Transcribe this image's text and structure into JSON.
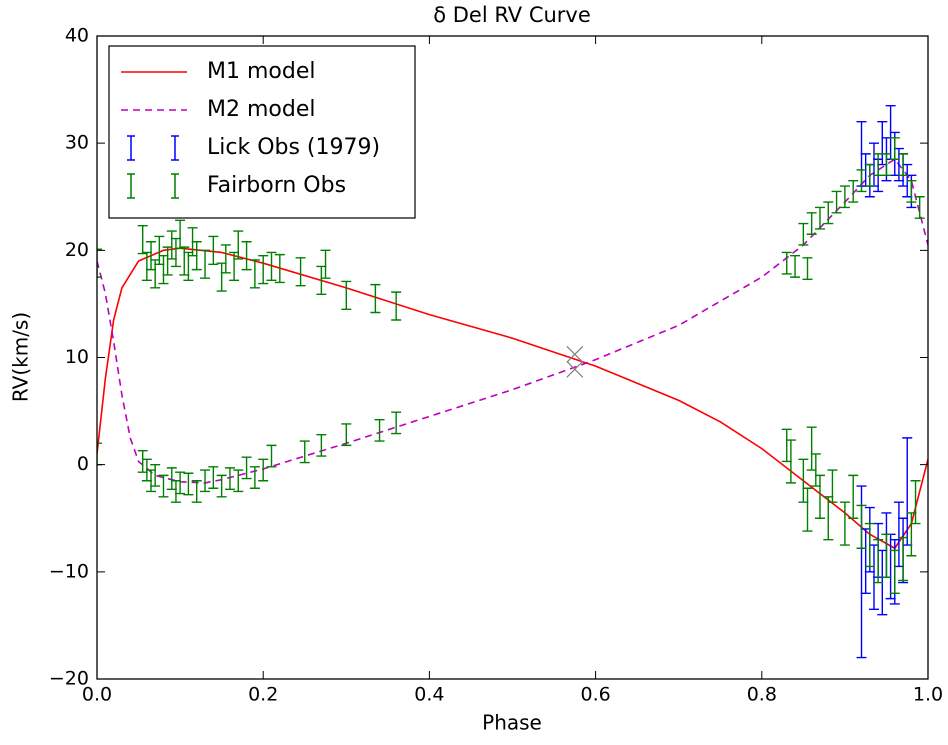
{
  "chart_data": {
    "type": "line",
    "title": "δ Del RV Curve",
    "xlabel": "Phase",
    "ylabel": "RV(km/s)",
    "xlim": [
      0,
      1
    ],
    "ylim": [
      -20,
      40
    ],
    "xticks": [
      {
        "value": 0,
        "label": "0.0"
      },
      0.2,
      0.4,
      0.6,
      0.8,
      {
        "value": 1,
        "label": "1.0"
      }
    ],
    "yticks": [
      {
        "value": -20,
        "label": "−20"
      },
      {
        "value": -10,
        "label": "−10"
      },
      0,
      10,
      20,
      30,
      40
    ],
    "legend": "upper left",
    "series": [
      {
        "name": "M1 model",
        "color": "#ff0000",
        "linestyle": "solid",
        "x": [
          0,
          0.01,
          0.02,
          0.03,
          0.05,
          0.08,
          0.1,
          0.15,
          0.2,
          0.3,
          0.4,
          0.5,
          0.6,
          0.7,
          0.75,
          0.8,
          0.85,
          0.9,
          0.93,
          0.96,
          0.98,
          1.0
        ],
        "values": [
          1,
          8,
          13.5,
          16.5,
          19,
          20,
          20.2,
          19.8,
          18.8,
          16.5,
          14,
          11.8,
          9.2,
          6,
          4,
          1.5,
          -1.5,
          -4.5,
          -6.5,
          -7.8,
          -5.5,
          0.5
        ]
      },
      {
        "name": "M2 model",
        "color": "#bf00bf",
        "linestyle": "dashed",
        "x": [
          0,
          0.01,
          0.02,
          0.03,
          0.04,
          0.05,
          0.07,
          0.1,
          0.13,
          0.15,
          0.2,
          0.3,
          0.4,
          0.5,
          0.6,
          0.7,
          0.8,
          0.85,
          0.9,
          0.93,
          0.96,
          0.98,
          1.0
        ],
        "values": [
          19,
          16,
          11.5,
          6.5,
          2.5,
          0.3,
          -1,
          -1.6,
          -1.7,
          -1.4,
          -0.4,
          2,
          4.5,
          7,
          9.8,
          13,
          17.5,
          20.5,
          24.5,
          27,
          28.5,
          26.5,
          20.5
        ]
      },
      {
        "name": "Lick Obs (1979)",
        "color": "#0000ff",
        "x": [
          0.92,
          0.925,
          0.93,
          0.935,
          0.94,
          0.945,
          0.95,
          0.955,
          0.96,
          0.965,
          0.97,
          0.975,
          0.98,
          0.92,
          0.925,
          0.93,
          0.935,
          0.94,
          0.945,
          0.95,
          0.955,
          0.96,
          0.965,
          0.97,
          0.975
        ],
        "values": [
          29,
          27.5,
          26.5,
          28,
          27,
          30,
          28.5,
          31,
          29,
          28,
          27.5,
          26.5,
          25.5,
          -10,
          -9,
          -7,
          -10.5,
          -8,
          -11,
          -7.5,
          -9.5,
          -10,
          -6.5,
          -8,
          -2.5
        ],
        "errors": [
          3,
          1.5,
          1.5,
          2,
          1.5,
          2,
          2,
          2.5,
          2,
          1.5,
          1.5,
          1.5,
          1.5,
          8,
          3,
          3,
          3,
          2.5,
          3,
          3,
          3,
          3,
          3,
          3,
          5
        ]
      },
      {
        "name": "Fairborn Obs",
        "color": "#008000",
        "x": [
          0.0,
          0.055,
          0.06,
          0.065,
          0.07,
          0.075,
          0.08,
          0.085,
          0.09,
          0.095,
          0.1,
          0.105,
          0.11,
          0.115,
          0.12,
          0.13,
          0.14,
          0.15,
          0.155,
          0.165,
          0.17,
          0.18,
          0.19,
          0.2,
          0.21,
          0.22,
          0.245,
          0.27,
          0.275,
          0.3,
          0.335,
          0.36,
          0.0,
          0.055,
          0.06,
          0.065,
          0.07,
          0.08,
          0.09,
          0.095,
          0.1,
          0.11,
          0.12,
          0.13,
          0.14,
          0.15,
          0.16,
          0.17,
          0.18,
          0.19,
          0.2,
          0.21,
          0.25,
          0.27,
          0.3,
          0.34,
          0.36,
          0.83,
          0.835,
          0.85,
          0.855,
          0.86,
          0.865,
          0.87,
          0.88,
          0.885,
          0.9,
          0.91,
          0.92,
          0.93,
          0.94,
          0.95,
          0.96,
          0.97,
          0.98,
          0.985,
          0.83,
          0.84,
          0.85,
          0.855,
          0.86,
          0.87,
          0.88,
          0.89,
          0.9,
          0.91,
          0.92,
          0.93,
          0.94,
          0.95,
          0.96,
          0.97,
          0.98,
          0.99
        ],
        "values": [
          18.8,
          21,
          18.5,
          19.5,
          17.8,
          20,
          18.2,
          19,
          20.5,
          19.8,
          21.5,
          19,
          18.5,
          20.8,
          19.5,
          18.7,
          20,
          17.5,
          19.2,
          18.5,
          20.5,
          19.5,
          17.8,
          18.2,
          18.5,
          18.3,
          18,
          17.2,
          18.7,
          15.8,
          15.5,
          14.8,
          1,
          0.3,
          -0.5,
          -1.5,
          -1,
          -2,
          -1.3,
          -2.5,
          -1.7,
          -1.8,
          -2.5,
          -1.5,
          -1.2,
          -2,
          -1.3,
          -1.5,
          -0.3,
          -1.2,
          -0.5,
          0.8,
          1.2,
          1.8,
          2.8,
          3.2,
          3.9,
          1.8,
          0.3,
          -1.5,
          -4.2,
          1.5,
          -0.5,
          -3,
          -5,
          -2,
          -5.5,
          -3,
          -5.8,
          -7.5,
          -9,
          -8.5,
          -10,
          -8.8,
          -6.5,
          -3.5,
          18.8,
          18.5,
          21.5,
          18.3,
          22.5,
          23,
          23.5,
          24.5,
          25,
          25.5,
          26.5,
          27,
          28,
          28,
          29.5,
          28,
          25.5,
          24
        ],
        "errors": [
          1.3,
          1.3,
          1.3,
          1.3,
          1.3,
          1.3,
          1.3,
          1.3,
          1.3,
          1.3,
          1.3,
          1.3,
          1.3,
          1.3,
          1.3,
          1.3,
          1.3,
          1.3,
          1.3,
          1.3,
          1.3,
          1.3,
          1.3,
          1.3,
          1.3,
          1.3,
          1.3,
          1.3,
          1.3,
          1.3,
          1.3,
          1.3,
          1,
          1,
          1,
          1,
          1,
          1,
          1,
          1,
          1,
          1,
          1,
          1,
          1,
          1,
          1,
          1,
          1,
          1,
          1,
          1,
          1,
          1,
          1,
          1,
          1,
          1.5,
          2,
          2,
          2,
          2,
          1.5,
          2,
          2,
          1.5,
          2,
          2,
          2,
          2,
          2,
          2,
          2,
          2,
          2,
          2,
          1,
          1,
          1,
          1,
          1,
          1,
          1,
          1,
          1,
          1,
          1,
          1,
          1,
          1,
          1,
          1,
          1,
          1
        ]
      }
    ],
    "markers": {
      "color": "#808080",
      "x": [
        0.575,
        0.575
      ],
      "values": [
        10.3,
        8.9
      ]
    }
  }
}
